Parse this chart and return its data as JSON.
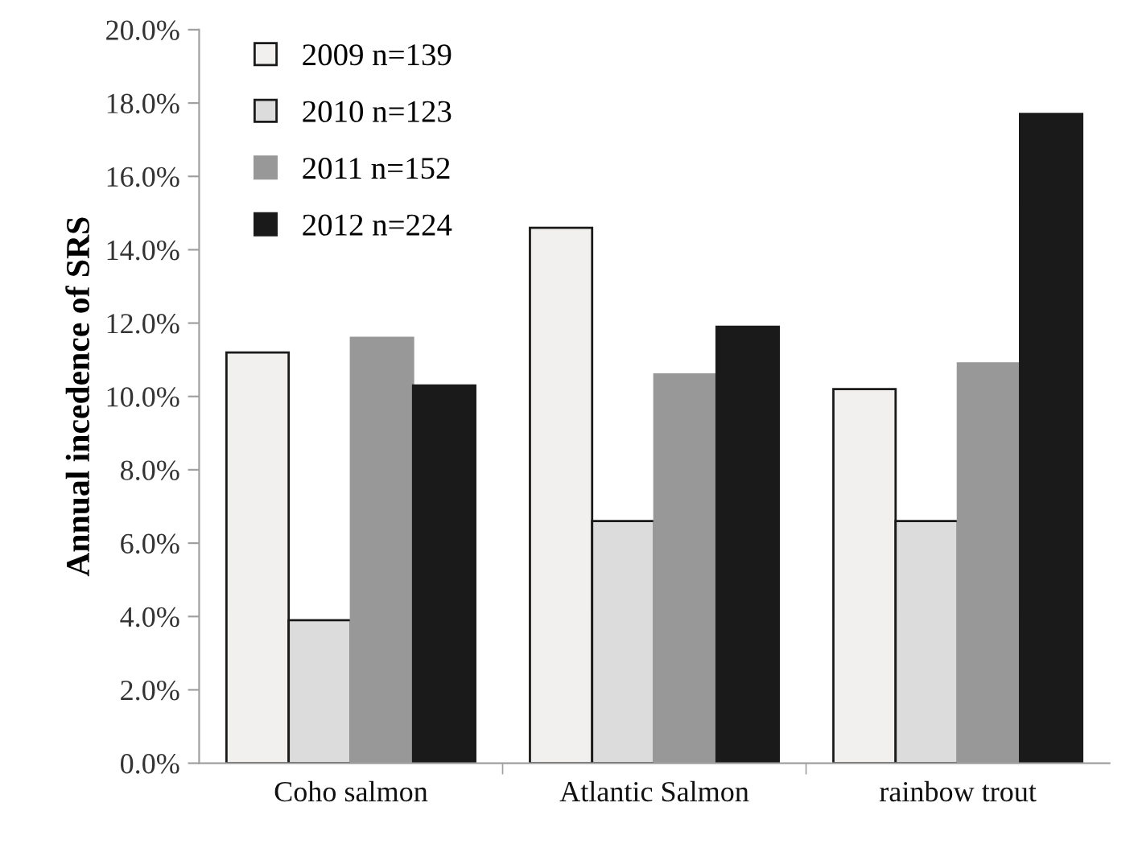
{
  "chart_data": {
    "type": "bar",
    "ylabel": "Annual incedence of SRS",
    "categories": [
      "Coho salmon",
      "Atlantic Salmon",
      "rainbow trout"
    ],
    "series": [
      {
        "name": "2009 n=139",
        "color": "#f1f0ee",
        "values": [
          11.2,
          14.6,
          10.2
        ]
      },
      {
        "name": "2010 n=123",
        "color": "#dcdcdc",
        "values": [
          3.9,
          6.6,
          6.6
        ]
      },
      {
        "name": "2011 n=152",
        "color": "#989898",
        "values": [
          11.6,
          10.6,
          10.9
        ]
      },
      {
        "name": "2012 n=224",
        "color": "#1a1a1a",
        "values": [
          10.3,
          11.9,
          17.7
        ]
      }
    ],
    "ylim": [
      0,
      20
    ],
    "yticks": [
      {
        "value": 0,
        "label": "0.0%"
      },
      {
        "value": 2,
        "label": "2.0%"
      },
      {
        "value": 4,
        "label": "4.0%"
      },
      {
        "value": 6,
        "label": "6.0%"
      },
      {
        "value": 8,
        "label": "8.0%"
      },
      {
        "value": 10,
        "label": "10.0%"
      },
      {
        "value": 12,
        "label": "12.0%"
      },
      {
        "value": 14,
        "label": "14.0%"
      },
      {
        "value": 16,
        "label": "16.0%"
      },
      {
        "value": 18,
        "label": "18.0%"
      },
      {
        "value": 20,
        "label": "20.0%"
      }
    ],
    "grid": false,
    "legend": "top left"
  }
}
